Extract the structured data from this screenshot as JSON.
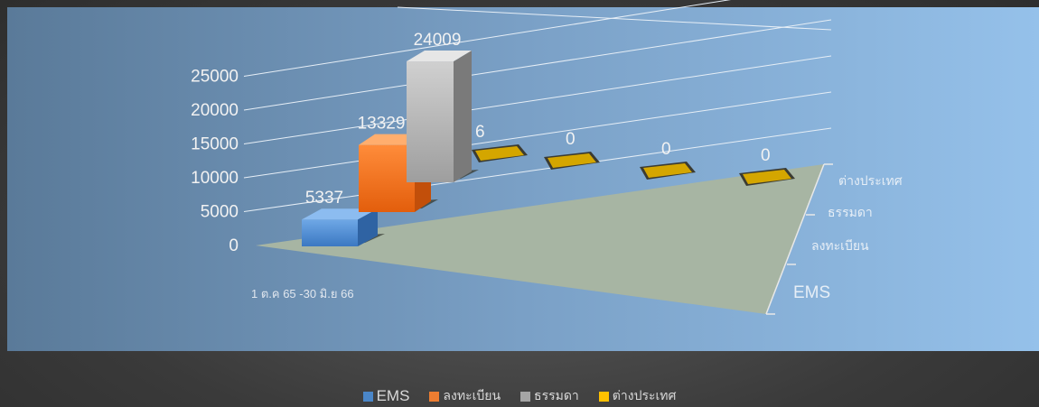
{
  "chart_data": {
    "type": "bar",
    "categories": [
      "1 ต.ค 65 -30 มิ.ย 66"
    ],
    "series": [
      {
        "name": "EMS",
        "values": [
          5337
        ],
        "color": "#4a86c8"
      },
      {
        "name": "ลงทะเบียน",
        "values": [
          13329
        ],
        "color": "#ed7d31"
      },
      {
        "name": "ธรรมดา",
        "values": [
          24009
        ],
        "color": "#a5a5a5"
      },
      {
        "name": "ต่างประเทศ",
        "values": [
          6
        ],
        "color": "#ffc000"
      }
    ],
    "extra_value_labels": [
      "0",
      "0",
      "0"
    ],
    "depth_labels": [
      "EMS",
      "ลงทะเบียน",
      "ธรรมดา",
      "ต่างประเทศ"
    ],
    "y_ticks": [
      "0",
      "5000",
      "10000",
      "15000",
      "20000",
      "25000"
    ],
    "ylim": [
      0,
      25000
    ],
    "title": "",
    "xlabel": "",
    "ylabel": "",
    "legend_position": "bottom",
    "grid": true
  }
}
